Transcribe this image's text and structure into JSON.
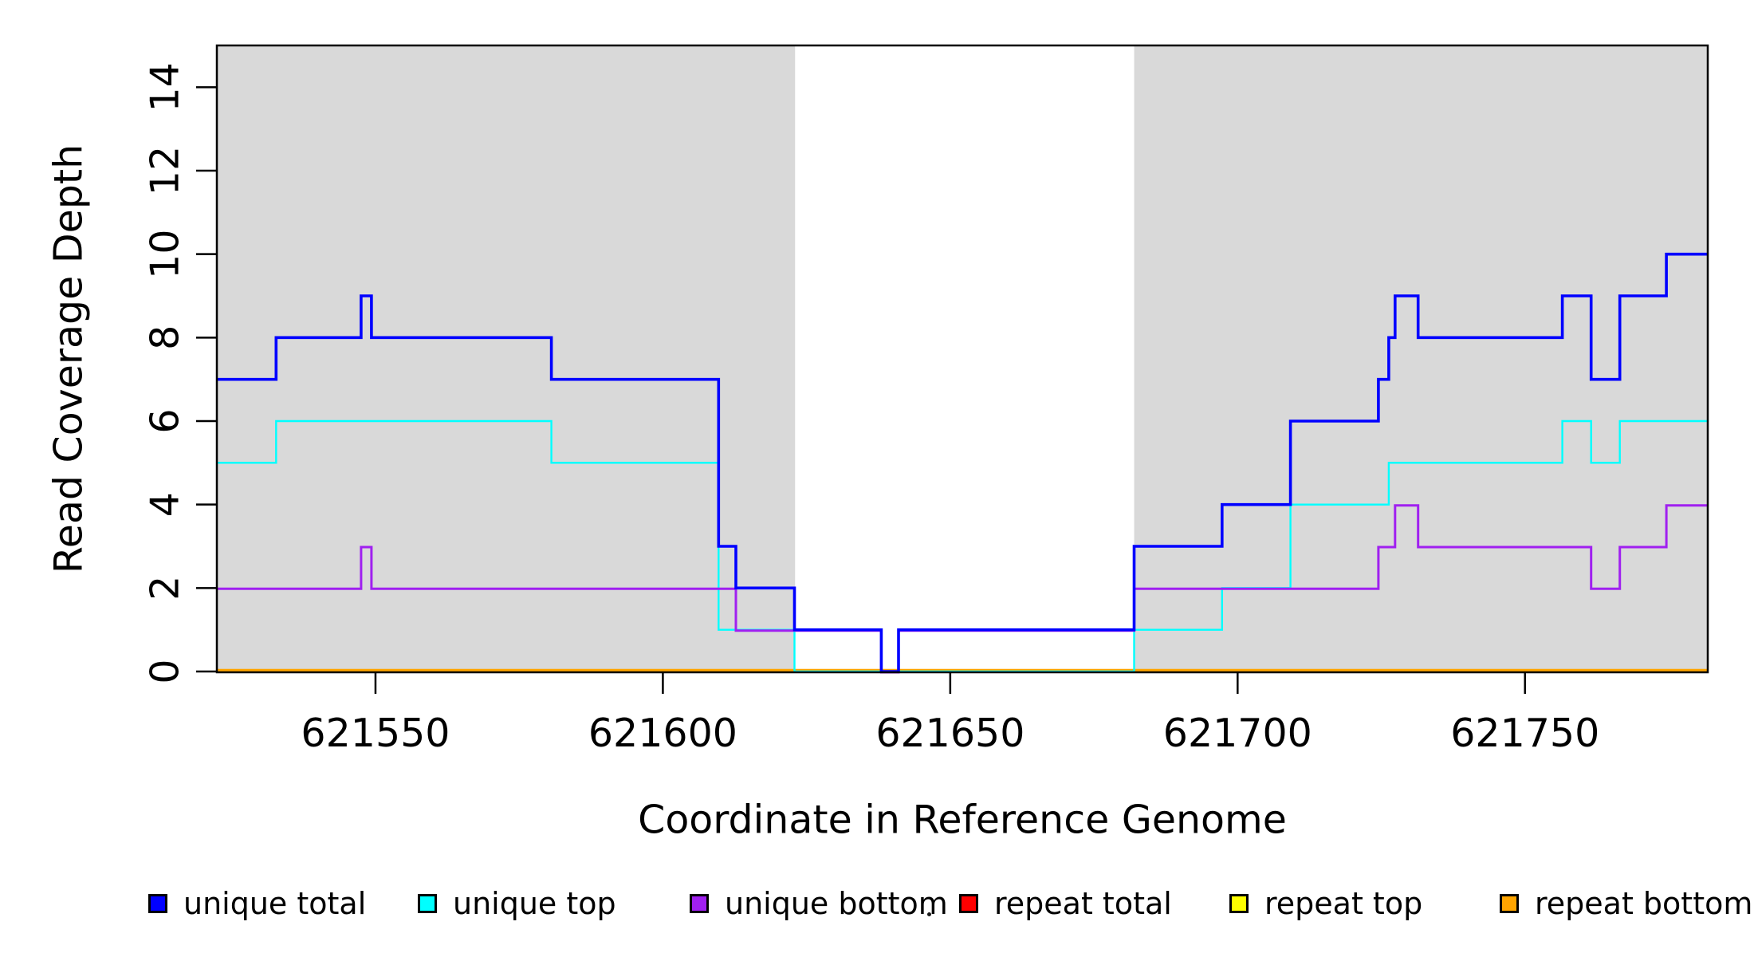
{
  "chart_data": {
    "type": "line",
    "subtype": "step",
    "title": "",
    "xlabel": "Coordinate in Reference Genome",
    "ylabel": "Read Coverage Depth",
    "x_tick_values": [
      621550,
      621600,
      621650,
      621700,
      621750
    ],
    "x_tick_labels": [
      "621550",
      "621600",
      "621650",
      "621700",
      "621750"
    ],
    "y_tick_values": [
      0,
      2,
      4,
      6,
      8,
      10,
      12,
      14
    ],
    "y_tick_labels": [
      "0",
      "2",
      "4",
      "6",
      "8",
      "10",
      "12",
      "14"
    ],
    "xlim": [
      621522.4,
      621781.8
    ],
    "ylim": [
      0,
      15
    ],
    "grid": false,
    "background_color": "#ffffff",
    "masked_region_color": "#d9d9d9",
    "masked_regions": [
      {
        "x0": 621522.4,
        "x1": 621623.0
      },
      {
        "x0": 621682.0,
        "x1": 621781.8
      }
    ],
    "unmasked_gap": {
      "x0": 621623.0,
      "x1": 621682.0
    },
    "series": [
      {
        "name": "repeat total",
        "color": "#ff0000",
        "width": 3,
        "steps": [
          [
            621522.4,
            0
          ]
        ]
      },
      {
        "name": "repeat top",
        "color": "#ffff00",
        "width": 3,
        "steps": [
          [
            621522.4,
            0
          ]
        ]
      },
      {
        "name": "repeat bottom",
        "color": "#ffa500",
        "width": 3.4,
        "steps": [
          [
            621522.4,
            0
          ]
        ]
      },
      {
        "name": "unique top",
        "color": "#00ffff",
        "width": 2.4,
        "steps": [
          [
            621522.4,
            5
          ],
          [
            621532.7,
            6
          ],
          [
            621580.6,
            5
          ],
          [
            621609.7,
            1
          ],
          [
            621622.9,
            0
          ],
          [
            621682.0,
            1
          ],
          [
            621697.3,
            2
          ],
          [
            621709.2,
            4
          ],
          [
            621726.3,
            5
          ],
          [
            621756.5,
            6
          ],
          [
            621761.5,
            5
          ],
          [
            621766.5,
            6
          ]
        ]
      },
      {
        "name": "unique bottom",
        "color": "#a020f0",
        "width": 3,
        "steps": [
          [
            621522.4,
            2
          ],
          [
            621547.5,
            3
          ],
          [
            621549.3,
            2
          ],
          [
            621612.7,
            1
          ],
          [
            621638.0,
            0
          ],
          [
            621641.0,
            1
          ],
          [
            621682.0,
            2
          ],
          [
            621724.5,
            3
          ],
          [
            621727.4,
            4
          ],
          [
            621731.4,
            3
          ],
          [
            621761.5,
            2
          ],
          [
            621766.5,
            3
          ],
          [
            621774.6,
            4
          ]
        ]
      },
      {
        "name": "unique total",
        "color": "#0000ff",
        "width": 3.6,
        "steps": [
          [
            621522.4,
            7
          ],
          [
            621532.7,
            8
          ],
          [
            621547.5,
            9
          ],
          [
            621549.3,
            8
          ],
          [
            621580.6,
            7
          ],
          [
            621609.7,
            3
          ],
          [
            621612.7,
            2
          ],
          [
            621622.9,
            1
          ],
          [
            621638.0,
            0
          ],
          [
            621641.0,
            1
          ],
          [
            621682.0,
            3
          ],
          [
            621697.3,
            4
          ],
          [
            621709.2,
            6
          ],
          [
            621724.5,
            7
          ],
          [
            621726.3,
            8
          ],
          [
            621727.4,
            9
          ],
          [
            621731.4,
            8
          ],
          [
            621756.5,
            9
          ],
          [
            621761.5,
            7
          ],
          [
            621766.5,
            9
          ],
          [
            621774.6,
            10
          ]
        ]
      }
    ],
    "legend": {
      "position": "bottom",
      "items": [
        {
          "label": "unique total",
          "color": "#0000ff"
        },
        {
          "label": "unique top",
          "color": "#00ffff"
        },
        {
          "label": "unique bottom",
          "color": "#a020f0"
        },
        {
          "label": "repeat total",
          "color": "#ff0000"
        },
        {
          "label": "repeat top",
          "color": "#ffff00"
        },
        {
          "label": "repeat bottom",
          "color": "#ffa500"
        }
      ]
    }
  }
}
